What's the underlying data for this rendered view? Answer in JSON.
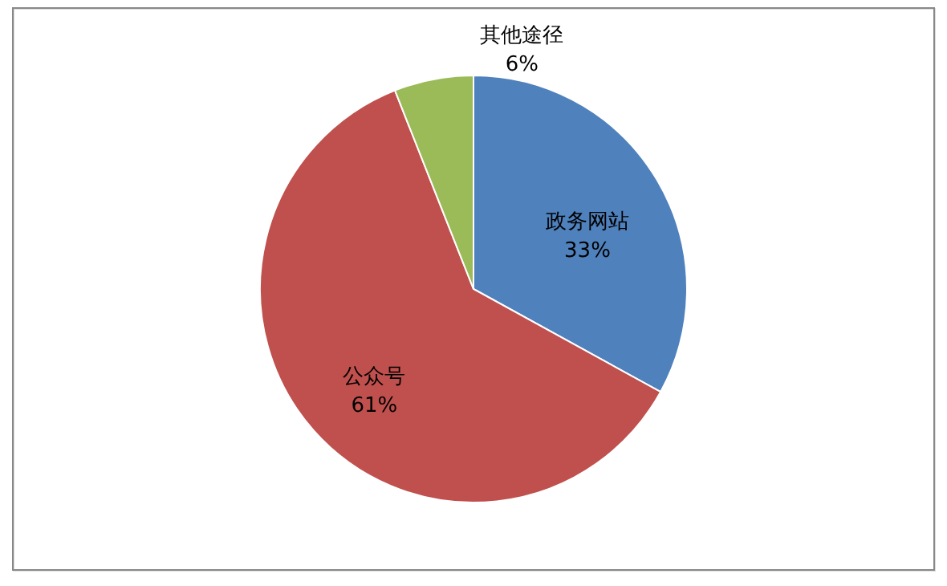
{
  "chart_data": {
    "type": "pie",
    "categories": [
      "政务网站",
      "公众号",
      "其他途径"
    ],
    "values": [
      33,
      61,
      6
    ],
    "colors": [
      "#4f81bd",
      "#c0504d",
      "#9bbb59"
    ],
    "value_labels": [
      "33%",
      "61%",
      "6%"
    ]
  }
}
